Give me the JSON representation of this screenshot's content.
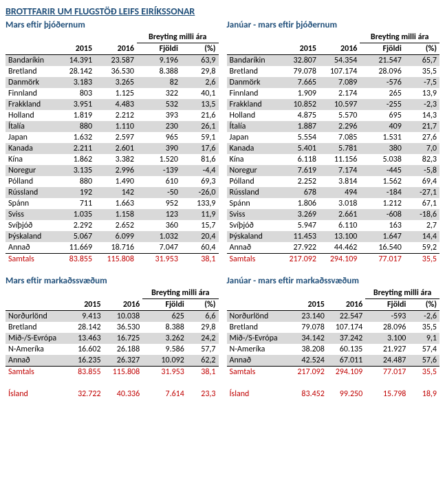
{
  "mainTitle": "BROTTFARIR UM FLUGSTÖÐ LEIFS EIRÍKSSONAR",
  "headers": {
    "change": "Breyting milli ára",
    "y2015": "2015",
    "y2016": "2016",
    "count": "Fjöldi",
    "pct": "(%)"
  },
  "subtitleLeftTop": "Mars eftir þjóðernum",
  "subtitleRightTop": "Janúar - mars eftir þjóðernum",
  "subtitleLeftBottom": "Mars eftir markaðssvæðum",
  "subtitleRightBottom": "Janúar - mars eftir markaðssvæðum",
  "countriesLeft": [
    {
      "n": "Bandaríkin",
      "a": "14.391",
      "b": "23.587",
      "c": "9.196",
      "p": "63,9"
    },
    {
      "n": "Bretland",
      "a": "28.142",
      "b": "36.530",
      "c": "8.388",
      "p": "29,8"
    },
    {
      "n": "Danmörk",
      "a": "3.183",
      "b": "3.265",
      "c": "82",
      "p": "2,6"
    },
    {
      "n": "Finnland",
      "a": "803",
      "b": "1.125",
      "c": "322",
      "p": "40,1"
    },
    {
      "n": "Frakkland",
      "a": "3.951",
      "b": "4.483",
      "c": "532",
      "p": "13,5"
    },
    {
      "n": "Holland",
      "a": "1.819",
      "b": "2.212",
      "c": "393",
      "p": "21,6"
    },
    {
      "n": "Ítalía",
      "a": "880",
      "b": "1.110",
      "c": "230",
      "p": "26,1"
    },
    {
      "n": "Japan",
      "a": "1.632",
      "b": "2.597",
      "c": "965",
      "p": "59,1"
    },
    {
      "n": "Kanada",
      "a": "2.211",
      "b": "2.601",
      "c": "390",
      "p": "17,6"
    },
    {
      "n": "Kína",
      "a": "1.862",
      "b": "3.382",
      "c": "1.520",
      "p": "81,6"
    },
    {
      "n": "Noregur",
      "a": "3.135",
      "b": "2.996",
      "c": "-139",
      "p": "-4,4"
    },
    {
      "n": "Pólland",
      "a": "880",
      "b": "1.490",
      "c": "610",
      "p": "69,3"
    },
    {
      "n": "Rússland",
      "a": "192",
      "b": "142",
      "c": "-50",
      "p": "-26,0"
    },
    {
      "n": "Spánn",
      "a": "711",
      "b": "1.663",
      "c": "952",
      "p": "133,9"
    },
    {
      "n": "Sviss",
      "a": "1.035",
      "b": "1.158",
      "c": "123",
      "p": "11,9"
    },
    {
      "n": "Svíþjóð",
      "a": "2.292",
      "b": "2.652",
      "c": "360",
      "p": "15,7"
    },
    {
      "n": "Þýskaland",
      "a": "5.067",
      "b": "6.099",
      "c": "1.032",
      "p": "20,4"
    },
    {
      "n": "Annað",
      "a": "11.669",
      "b": "18.716",
      "c": "7.047",
      "p": "60,4"
    }
  ],
  "countriesLeftTotal": {
    "n": "Samtals",
    "a": "83.855",
    "b": "115.808",
    "c": "31.953",
    "p": "38,1"
  },
  "countriesRight": [
    {
      "n": "Bandaríkin",
      "a": "32.807",
      "b": "54.354",
      "c": "21.547",
      "p": "65,7"
    },
    {
      "n": "Bretland",
      "a": "79.078",
      "b": "107.174",
      "c": "28.096",
      "p": "35,5"
    },
    {
      "n": "Danmörk",
      "a": "7.665",
      "b": "7.089",
      "c": "-576",
      "p": "-7,5"
    },
    {
      "n": "Finnland",
      "a": "1.909",
      "b": "2.174",
      "c": "265",
      "p": "13,9"
    },
    {
      "n": "Frakkland",
      "a": "10.852",
      "b": "10.597",
      "c": "-255",
      "p": "-2,3"
    },
    {
      "n": "Holland",
      "a": "4.875",
      "b": "5.570",
      "c": "695",
      "p": "14,3"
    },
    {
      "n": "Ítalía",
      "a": "1.887",
      "b": "2.296",
      "c": "409",
      "p": "21,7"
    },
    {
      "n": "Japan",
      "a": "5.554",
      "b": "7.085",
      "c": "1.531",
      "p": "27,6"
    },
    {
      "n": "Kanada",
      "a": "5.401",
      "b": "5.781",
      "c": "380",
      "p": "7,0"
    },
    {
      "n": "Kína",
      "a": "6.118",
      "b": "11.156",
      "c": "5.038",
      "p": "82,3"
    },
    {
      "n": "Noregur",
      "a": "7.619",
      "b": "7.174",
      "c": "-445",
      "p": "-5,8"
    },
    {
      "n": "Pólland",
      "a": "2.252",
      "b": "3.814",
      "c": "1.562",
      "p": "69,4"
    },
    {
      "n": "Rússland",
      "a": "678",
      "b": "494",
      "c": "-184",
      "p": "-27,1"
    },
    {
      "n": "Spánn",
      "a": "1.806",
      "b": "3.018",
      "c": "1.212",
      "p": "67,1"
    },
    {
      "n": "Sviss",
      "a": "3.269",
      "b": "2.661",
      "c": "-608",
      "p": "-18,6"
    },
    {
      "n": "Svíþjóð",
      "a": "5.947",
      "b": "6.110",
      "c": "163",
      "p": "2,7"
    },
    {
      "n": "Þýskaland",
      "a": "11.453",
      "b": "13.100",
      "c": "1.647",
      "p": "14,4"
    },
    {
      "n": "Annað",
      "a": "27.922",
      "b": "44.462",
      "c": "16.540",
      "p": "59,2"
    }
  ],
  "countriesRightTotal": {
    "n": "Samtals",
    "a": "217.092",
    "b": "294.109",
    "c": "77.017",
    "p": "35,5"
  },
  "marketsLeft": [
    {
      "n": "Norðurlönd",
      "a": "9.413",
      "b": "10.038",
      "c": "625",
      "p": "6,6"
    },
    {
      "n": "Bretland",
      "a": "28.142",
      "b": "36.530",
      "c": "8.388",
      "p": "29,8"
    },
    {
      "n": "Mið-/S-Evrópa",
      "a": "13.463",
      "b": "16.725",
      "c": "3.262",
      "p": "24,2"
    },
    {
      "n": "N-Ameríka",
      "a": "16.602",
      "b": "26.188",
      "c": "9.586",
      "p": "57,7"
    },
    {
      "n": "Annað",
      "a": "16.235",
      "b": "26.327",
      "c": "10.092",
      "p": "62,2"
    }
  ],
  "marketsLeftTotal": {
    "n": "Samtals",
    "a": "83.855",
    "b": "115.808",
    "c": "31.953",
    "p": "38,1"
  },
  "marketsLeftIceland": {
    "n": "Ísland",
    "a": "32.722",
    "b": "40.336",
    "c": "7.614",
    "p": "23,3"
  },
  "marketsRight": [
    {
      "n": "Norðurlönd",
      "a": "23.140",
      "b": "22.547",
      "c": "-593",
      "p": "-2,6"
    },
    {
      "n": "Bretland",
      "a": "79.078",
      "b": "107.174",
      "c": "28.096",
      "p": "35,5"
    },
    {
      "n": "Mið-/S-Evrópa",
      "a": "34.142",
      "b": "37.242",
      "c": "3.100",
      "p": "9,1"
    },
    {
      "n": "N-Ameríka",
      "a": "38.208",
      "b": "60.135",
      "c": "21.927",
      "p": "57,4"
    },
    {
      "n": "Annað",
      "a": "42.524",
      "b": "67.011",
      "c": "24.487",
      "p": "57,6"
    }
  ],
  "marketsRightTotal": {
    "n": "Samtals",
    "a": "217.092",
    "b": "294.109",
    "c": "77.017",
    "p": "35,5"
  },
  "marketsRightIceland": {
    "n": "Ísland",
    "a": "83.452",
    "b": "99.250",
    "c": "15.798",
    "p": "18,9"
  }
}
